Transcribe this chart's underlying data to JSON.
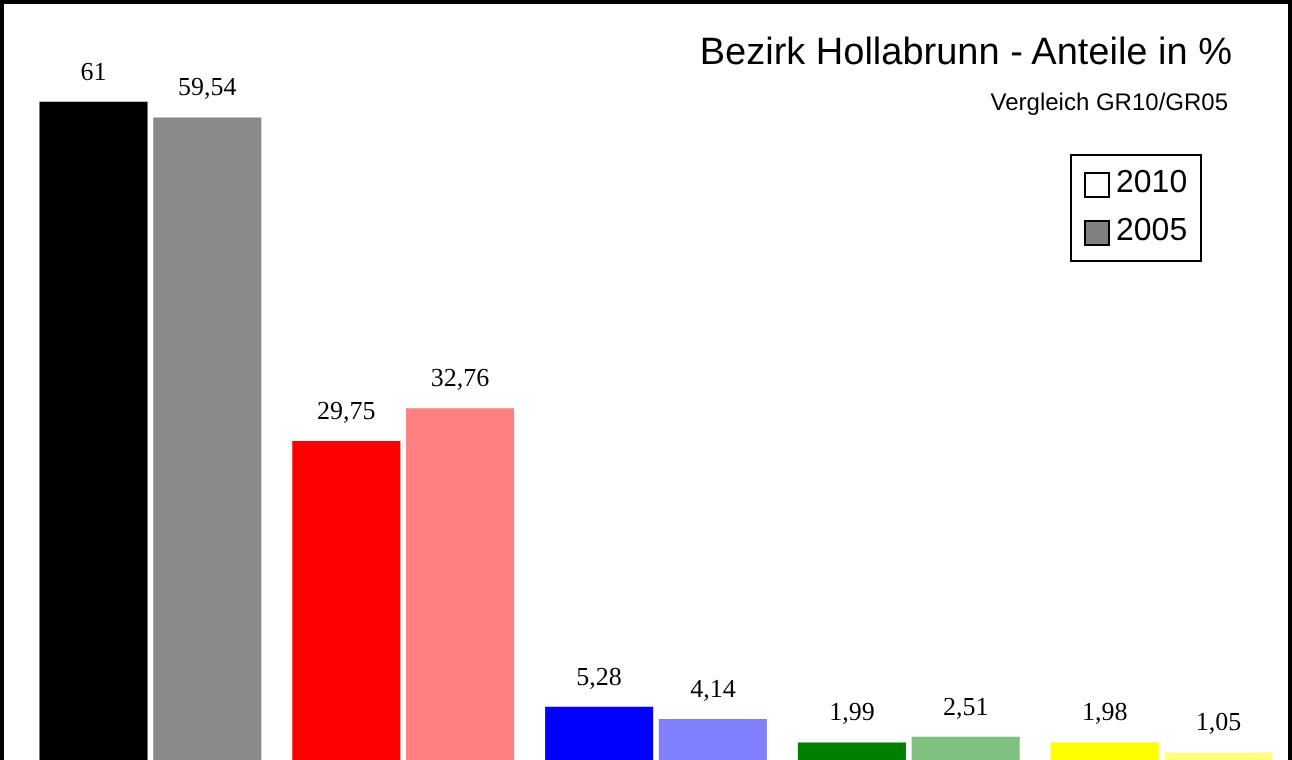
{
  "chart_data": {
    "type": "bar",
    "title": "Bezirk Hollabrunn - Anteile in %",
    "subtitle": "Vergleich GR10/GR05",
    "categories": [
      null,
      null,
      null,
      null,
      null
    ],
    "legend": "top right",
    "series": [
      {
        "name": "2010",
        "color": "#ffffff",
        "colors": [
          "#000000",
          "#ff0000",
          "#0000ff",
          "#008000",
          "#ffff00"
        ],
        "values": [
          61,
          29.75,
          5.28,
          1.99,
          1.98
        ],
        "value_labels": [
          "61",
          "29,75",
          "5,28",
          "1,99",
          "1,98"
        ]
      },
      {
        "name": "2005",
        "color": "#808080",
        "colors": [
          "#8a8a8a",
          "#ff8080",
          "#8080ff",
          "#80c080",
          "#ffff80"
        ],
        "values": [
          59.54,
          32.76,
          4.14,
          2.51,
          1.05
        ],
        "value_labels": [
          "59,54",
          "32,76",
          "4,14",
          "2,51",
          "1,05"
        ]
      }
    ]
  }
}
